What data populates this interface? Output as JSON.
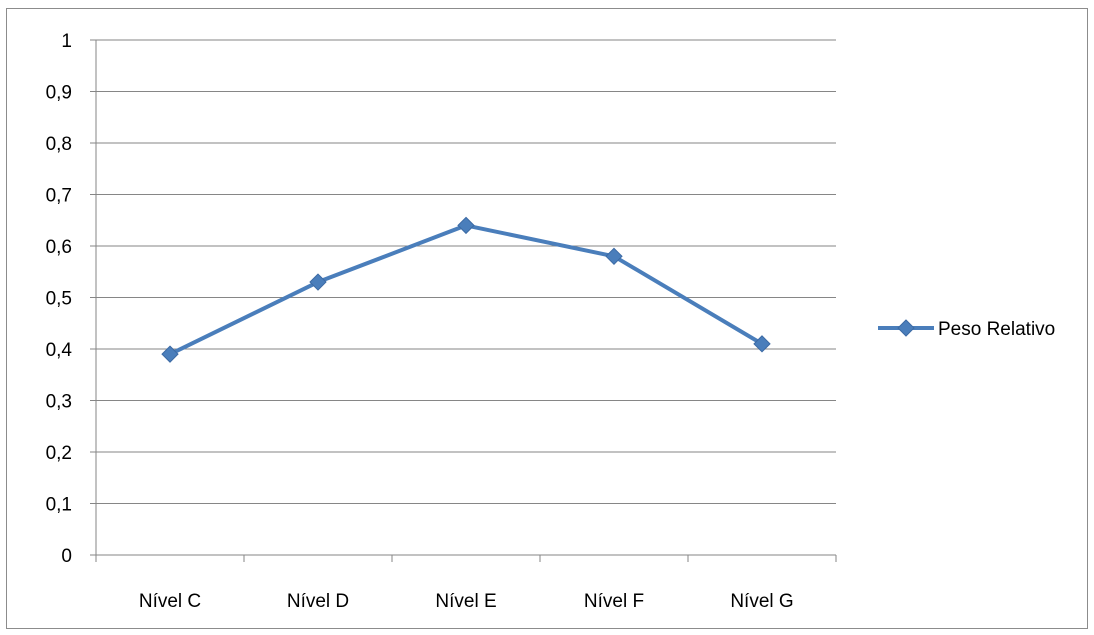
{
  "chart_data": {
    "type": "line",
    "title": "",
    "xlabel": "",
    "ylabel": "",
    "categories": [
      "Nível C",
      "Nível D",
      "Nível E",
      "Nível F",
      "Nível G"
    ],
    "y_ticks": [
      "0",
      "0,1",
      "0,2",
      "0,3",
      "0,4",
      "0,5",
      "0,6",
      "0,7",
      "0,8",
      "0,9",
      "1"
    ],
    "ylim": [
      0,
      1
    ],
    "grid": true,
    "legend_position": "right",
    "series": [
      {
        "name": "Peso Relativo",
        "values": [
          0.39,
          0.53,
          0.64,
          0.58,
          0.41
        ],
        "color": "#4a7ebb",
        "marker": "diamond"
      }
    ]
  }
}
